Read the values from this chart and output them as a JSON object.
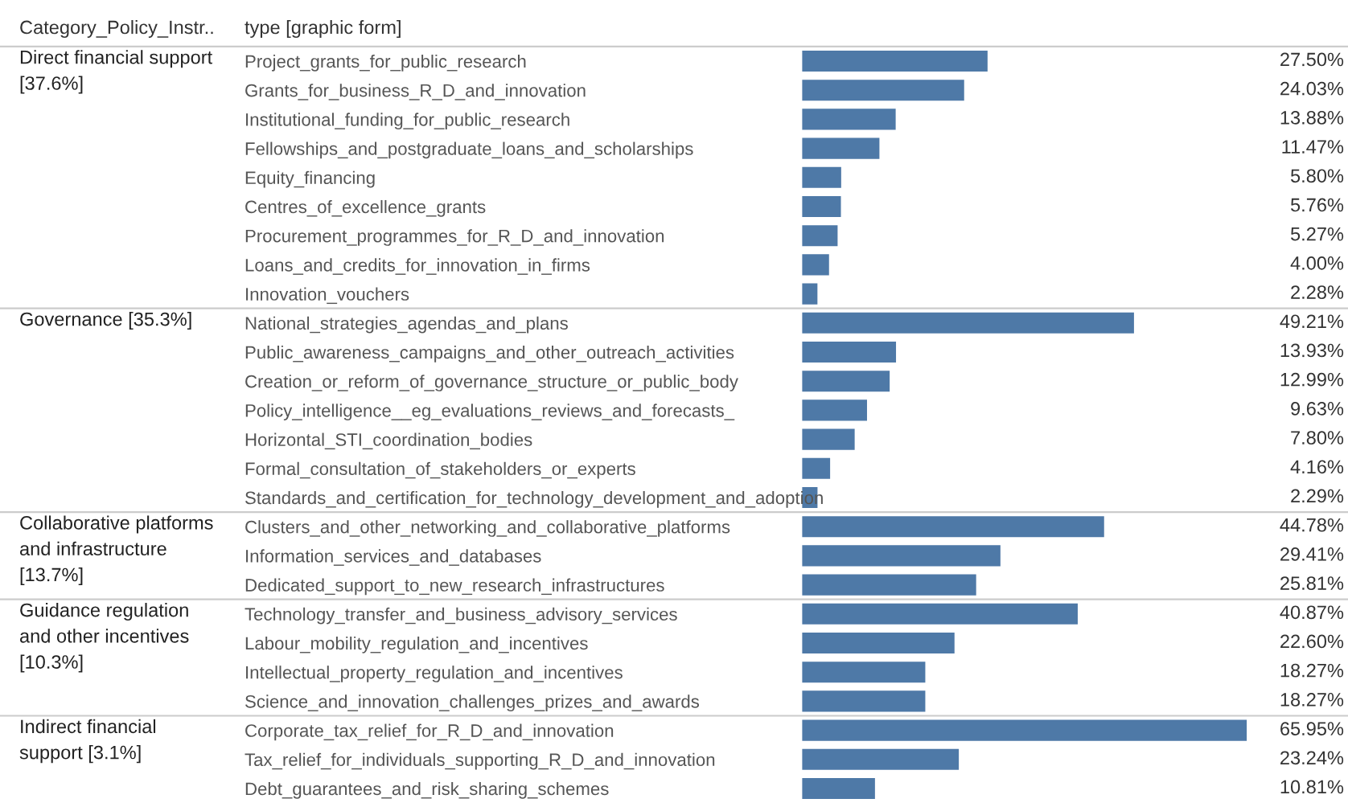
{
  "chart_data": [
    {
      "type": "bar",
      "orientation": "horizontal",
      "title": "Direct financial support\n[37.6%]",
      "ylabel": "type [graphic form]",
      "annotations": [
        "Category_Policy_Instr.."
      ],
      "color": "#4e79a7",
      "tick_labels": "y",
      "categories": [
        "Project_grants_for_public_research",
        "Grants_for_business_R_D_and_innovation",
        "Institutional_funding_for_public_research",
        "Fellowships_and_postgraduate_loans_and_scholarships",
        "Equity_financing",
        "Centres_of_excellence_grants",
        "Procurement_programmes_for_R_D_and_innovation",
        "Loans_and_credits_for_innovation_in_firms",
        "Innovation_vouchers"
      ],
      "values": [
        27.5,
        24.03,
        13.88,
        11.47,
        5.8,
        5.76,
        5.27,
        4.0,
        2.28
      ],
      "value_labels": [
        "27.50%",
        "24.03%",
        "13.88%",
        "11.47%",
        "5.80%",
        "5.76%",
        "5.27%",
        "4.00%",
        "2.28%"
      ]
    },
    {
      "type": "bar",
      "orientation": "horizontal",
      "title": "Governance [35.3%]",
      "color": "#4e79a7",
      "tick_labels": "y",
      "categories": [
        "National_strategies_agendas_and_plans",
        "Public_awareness_campaigns_and_other_outreach_activities",
        "Creation_or_reform_of_governance_structure_or_public_body",
        "Policy_intelligence__eg_evaluations_reviews_and_forecasts_",
        "Horizontal_STI_coordination_bodies",
        "Formal_consultation_of_stakeholders_or_experts",
        "Standards_and_certification_for_technology_development_and_adoption"
      ],
      "values": [
        49.21,
        13.93,
        12.99,
        9.63,
        7.8,
        4.16,
        2.29
      ],
      "value_labels": [
        "49.21%",
        "13.93%",
        "12.99%",
        "9.63%",
        "7.80%",
        "4.16%",
        "2.29%"
      ]
    },
    {
      "type": "bar",
      "orientation": "horizontal",
      "title": "Collaborative platforms\nand infrastructure\n[13.7%]",
      "color": "#4e79a7",
      "tick_labels": "y",
      "categories": [
        "Clusters_and_other_networking_and_collaborative_platforms",
        "Information_services_and_databases",
        "Dedicated_support_to_new_research_infrastructures"
      ],
      "values": [
        44.78,
        29.41,
        25.81
      ],
      "value_labels": [
        "44.78%",
        "29.41%",
        "25.81%"
      ]
    },
    {
      "type": "bar",
      "orientation": "horizontal",
      "title": "Guidance regulation\nand other incentives\n[10.3%]",
      "color": "#4e79a7",
      "tick_labels": "y",
      "categories": [
        "Technology_transfer_and_business_advisory_services",
        "Labour_mobility_regulation_and_incentives",
        "Intellectual_property_regulation_and_incentives",
        "Science_and_innovation_challenges_prizes_and_awards"
      ],
      "values": [
        40.87,
        22.6,
        18.27,
        18.27
      ],
      "value_labels": [
        "40.87%",
        "22.60%",
        "18.27%",
        "18.27%"
      ]
    },
    {
      "type": "bar",
      "orientation": "horizontal",
      "title": "Indirect financial\nsupport [3.1%]",
      "color": "#4e79a7",
      "tick_labels": "y",
      "categories": [
        "Corporate_tax_relief_for_R_D_and_innovation",
        "Tax_relief_for_individuals_supporting_R_D_and_innovation",
        "Debt_guarantees_and_risk_sharing_schemes"
      ],
      "values": [
        65.95,
        23.24,
        10.81
      ],
      "value_labels": [
        "65.95%",
        "23.24%",
        "10.81%"
      ]
    }
  ]
}
